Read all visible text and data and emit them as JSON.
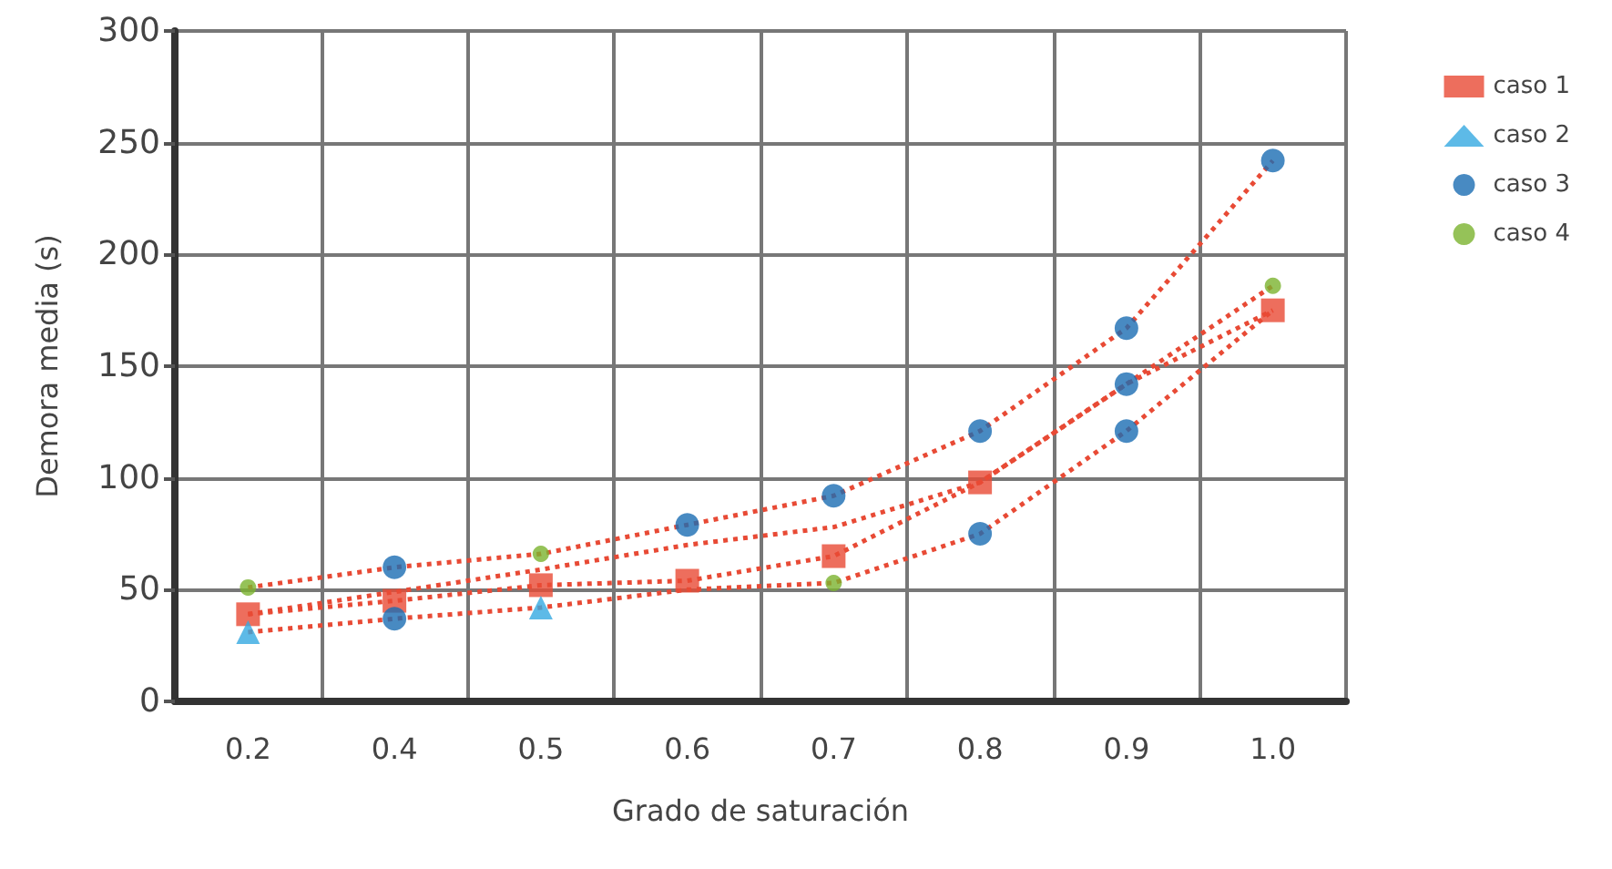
{
  "chart_data": {
    "type": "line",
    "xlabel": "Grado de saturación",
    "ylabel": "Demora media (s)",
    "categories": [
      "0.2",
      "0.4",
      "0.5",
      "0.6",
      "0.7",
      "0.8",
      "0.9",
      "1.0"
    ],
    "ylim": [
      0,
      300
    ],
    "yticks": [
      0,
      50,
      100,
      150,
      200,
      250,
      300
    ],
    "grid": true,
    "legend": "top right",
    "series": [
      {
        "type": "line",
        "color": "#e84a35",
        "line_style": "dotted",
        "marker": "none",
        "values": [
          51,
          60,
          66,
          79,
          92,
          121,
          167,
          242
        ]
      },
      {
        "type": "line",
        "color": "#e84a35",
        "line_style": "dotted",
        "marker": "none",
        "values": [
          39,
          49,
          59,
          70,
          78,
          98,
          142,
          186
        ]
      },
      {
        "type": "line",
        "color": "#e84a35",
        "line_style": "dotted",
        "marker": "none",
        "values": [
          39,
          45,
          52,
          54,
          65,
          98,
          142,
          175
        ]
      },
      {
        "type": "line",
        "color": "#e84a35",
        "line_style": "dotted",
        "marker": "none",
        "values": [
          31,
          37,
          42,
          50,
          53,
          75,
          121,
          175
        ]
      },
      {
        "type": "scatter",
        "name": "caso 1",
        "color": "#e84a35",
        "marker": "square",
        "x": [
          "0.2",
          "0.4",
          "0.5",
          "0.6",
          "0.7",
          "0.8",
          "1.0"
        ],
        "values": [
          39,
          45,
          52,
          54,
          65,
          98,
          175
        ]
      },
      {
        "type": "scatter",
        "name": "caso 2",
        "color": "#35a9e1",
        "marker": "triangle",
        "x": [
          "0.2",
          "0.5"
        ],
        "values": [
          31,
          42
        ]
      },
      {
        "type": "scatter",
        "name": "caso 3",
        "color": "#1a6db3",
        "marker": "circle",
        "x": [
          "0.4",
          "0.4",
          "0.6",
          "0.7",
          "0.8",
          "0.8",
          "0.9",
          "0.9",
          "0.9",
          "1.0"
        ],
        "values": [
          60,
          37,
          79,
          92,
          121,
          75,
          167,
          142,
          121,
          242
        ]
      },
      {
        "type": "scatter",
        "name": "caso 4",
        "color": "#7ab32e",
        "marker": "circle",
        "x": [
          "0.2",
          "0.5",
          "0.7",
          "1.0"
        ],
        "values": [
          51,
          66,
          53,
          186
        ]
      }
    ]
  }
}
